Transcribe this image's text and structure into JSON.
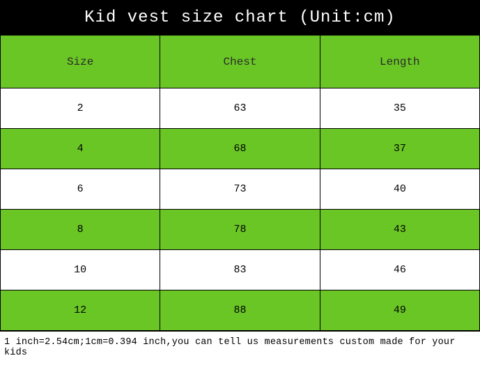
{
  "title": "Kid vest size chart (Unit:cm)",
  "columns": [
    "Size",
    "Chest",
    "Length"
  ],
  "rows": [
    [
      "2",
      "63",
      "35"
    ],
    [
      "4",
      "68",
      "37"
    ],
    [
      "6",
      "73",
      "40"
    ],
    [
      "8",
      "78",
      "43"
    ],
    [
      "10",
      "83",
      "46"
    ],
    [
      "12",
      "88",
      "49"
    ]
  ],
  "row_backgrounds": [
    "#ffffff",
    "#6ac625",
    "#ffffff",
    "#6ac625",
    "#ffffff",
    "#6ac625"
  ],
  "footnote": "1 inch=2.54cm;1cm=0.394 inch,you can tell us measurements custom made for your kids",
  "colors": {
    "title_bg": "#000000",
    "title_fg": "#ffffff",
    "header_bg": "#6ac625",
    "border": "#000000"
  }
}
